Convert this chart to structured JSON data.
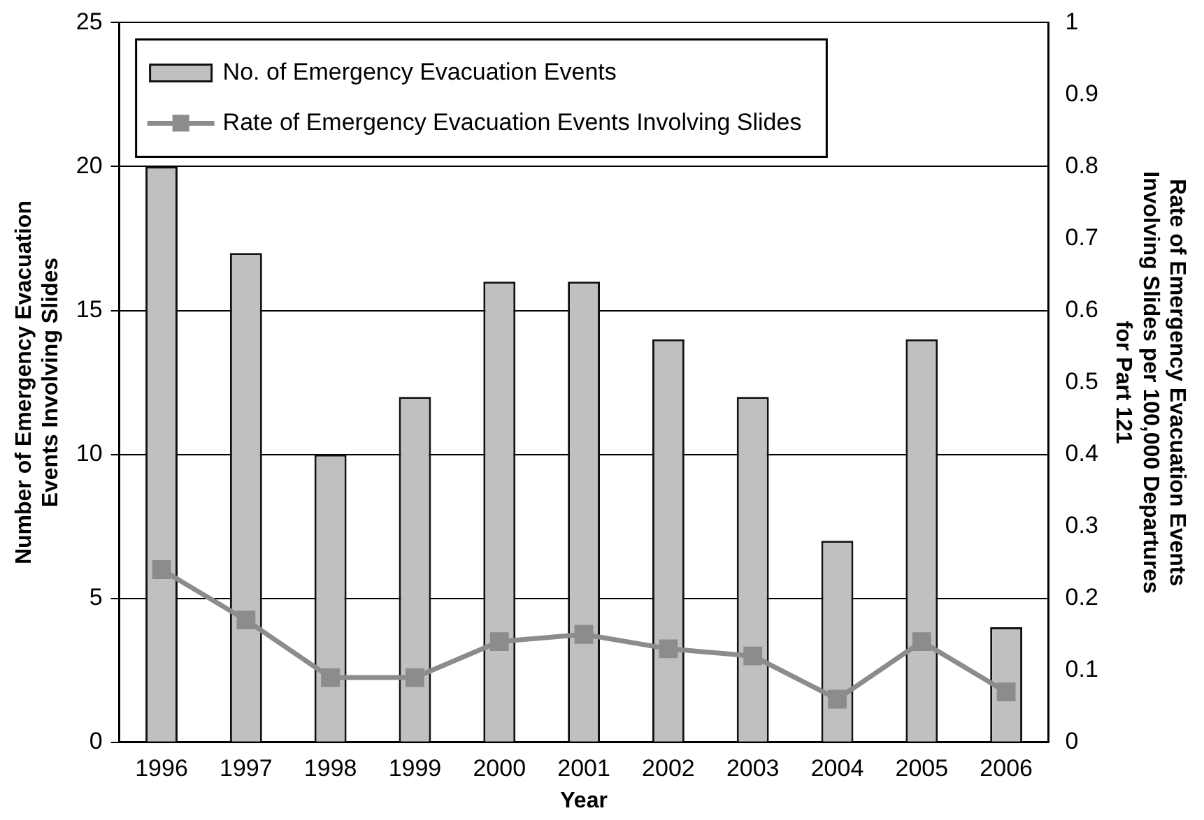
{
  "chart_data": {
    "type": "bar",
    "xlabel": "Year",
    "ylabel": "Number of Emergency Evacuation Events Involving Slides",
    "y2label": "Rate of Emergency Evacuation Events Involving Slides per 100,000 Departures for Part 121",
    "categories": [
      "1996",
      "1997",
      "1998",
      "1999",
      "2000",
      "2001",
      "2002",
      "2003",
      "2004",
      "2005",
      "2006"
    ],
    "series": [
      {
        "name": "No. of Emergency Evacuation Events",
        "color": "#c0c0c0",
        "values": [
          20,
          17,
          10,
          12,
          16,
          16,
          14,
          12,
          7,
          14,
          4
        ]
      },
      {
        "name": "Rate of Emergency Evacuation Events Involving Slides",
        "type": "line",
        "axis": "y2",
        "color": "#8c8c8c",
        "marker": "square",
        "values": [
          0.24,
          0.17,
          0.09,
          0.09,
          0.14,
          0.15,
          0.13,
          0.12,
          0.06,
          0.14,
          0.07
        ]
      }
    ],
    "ylim": [
      0,
      25
    ],
    "yticks": [
      0,
      5,
      10,
      15,
      20,
      25
    ],
    "y2lim": [
      0,
      1
    ],
    "y2ticks": [
      0,
      0.1,
      0.2,
      0.3,
      0.4,
      0.5,
      0.6,
      0.7,
      0.8,
      0.9,
      1
    ],
    "grid": "y",
    "legend": "top left"
  }
}
